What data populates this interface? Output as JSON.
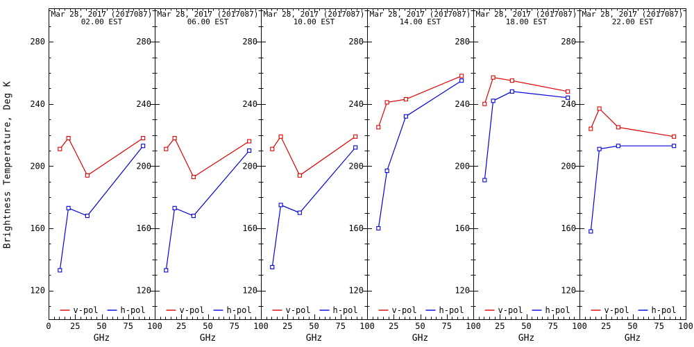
{
  "figure": {
    "y_axis_label": "Brightness Temperature, Deg K",
    "background": "#ffffff",
    "axis_color": "#000000"
  },
  "x_axis": {
    "label": "GHz",
    "range": [
      0,
      100
    ],
    "major_ticks": [
      0,
      25,
      50,
      75,
      100
    ],
    "minor_step": 5
  },
  "y_axis": {
    "range": [
      101.5,
      301.5
    ],
    "major_ticks": [
      120,
      160,
      200,
      240,
      280
    ],
    "minor_step": 10
  },
  "legend": {
    "position": "inside-bottom-center",
    "items": [
      {
        "label": "v-pol",
        "color": "#e00000"
      },
      {
        "label": "h-pol",
        "color": "#0000e0"
      }
    ]
  },
  "chart_data": [
    {
      "type": "line",
      "title": "Mar 28, 2017 (2017087)",
      "subtitle": "02.00 EST",
      "x": [
        10.65,
        18.7,
        36.5,
        89
      ],
      "series": [
        {
          "name": "v-pol",
          "color": "#e00000",
          "values": [
            211,
            218,
            194,
            218
          ]
        },
        {
          "name": "h-pol",
          "color": "#0000e0",
          "values": [
            133,
            173,
            168,
            213
          ]
        }
      ]
    },
    {
      "type": "line",
      "title": "Mar 28, 2017 (2017087)",
      "subtitle": "06.00 EST",
      "x": [
        10.65,
        18.7,
        36.5,
        89
      ],
      "series": [
        {
          "name": "v-pol",
          "color": "#e00000",
          "values": [
            211,
            218,
            193,
            216
          ]
        },
        {
          "name": "h-pol",
          "color": "#0000e0",
          "values": [
            133,
            173,
            168,
            210
          ]
        }
      ]
    },
    {
      "type": "line",
      "title": "Mar 28, 2017 (2017087)",
      "subtitle": "10.00 EST",
      "x": [
        10.65,
        18.7,
        36.5,
        89
      ],
      "series": [
        {
          "name": "v-pol",
          "color": "#e00000",
          "values": [
            211,
            219,
            194,
            219
          ]
        },
        {
          "name": "h-pol",
          "color": "#0000e0",
          "values": [
            135,
            175,
            170,
            212
          ]
        }
      ]
    },
    {
      "type": "line",
      "title": "Mar 28, 2017 (2017087)",
      "subtitle": "14.00 EST",
      "x": [
        10.65,
        18.7,
        36.5,
        89
      ],
      "series": [
        {
          "name": "v-pol",
          "color": "#e00000",
          "values": [
            225,
            241,
            243,
            258
          ]
        },
        {
          "name": "h-pol",
          "color": "#0000e0",
          "values": [
            160,
            197,
            232,
            255
          ]
        }
      ]
    },
    {
      "type": "line",
      "title": "Mar 28, 2017 (2017087)",
      "subtitle": "18.00 EST",
      "x": [
        10.65,
        18.7,
        36.5,
        89
      ],
      "series": [
        {
          "name": "v-pol",
          "color": "#e00000",
          "values": [
            240,
            257,
            255,
            248
          ]
        },
        {
          "name": "h-pol",
          "color": "#0000e0",
          "values": [
            191,
            242,
            248,
            244
          ]
        }
      ]
    },
    {
      "type": "line",
      "title": "Mar 28, 2017 (2017087)",
      "subtitle": "22.00 EST",
      "x": [
        10.65,
        18.7,
        36.5,
        89
      ],
      "series": [
        {
          "name": "v-pol",
          "color": "#e00000",
          "values": [
            224,
            237,
            225,
            219
          ]
        },
        {
          "name": "h-pol",
          "color": "#0000e0",
          "values": [
            158,
            211,
            213,
            213
          ]
        }
      ]
    }
  ]
}
